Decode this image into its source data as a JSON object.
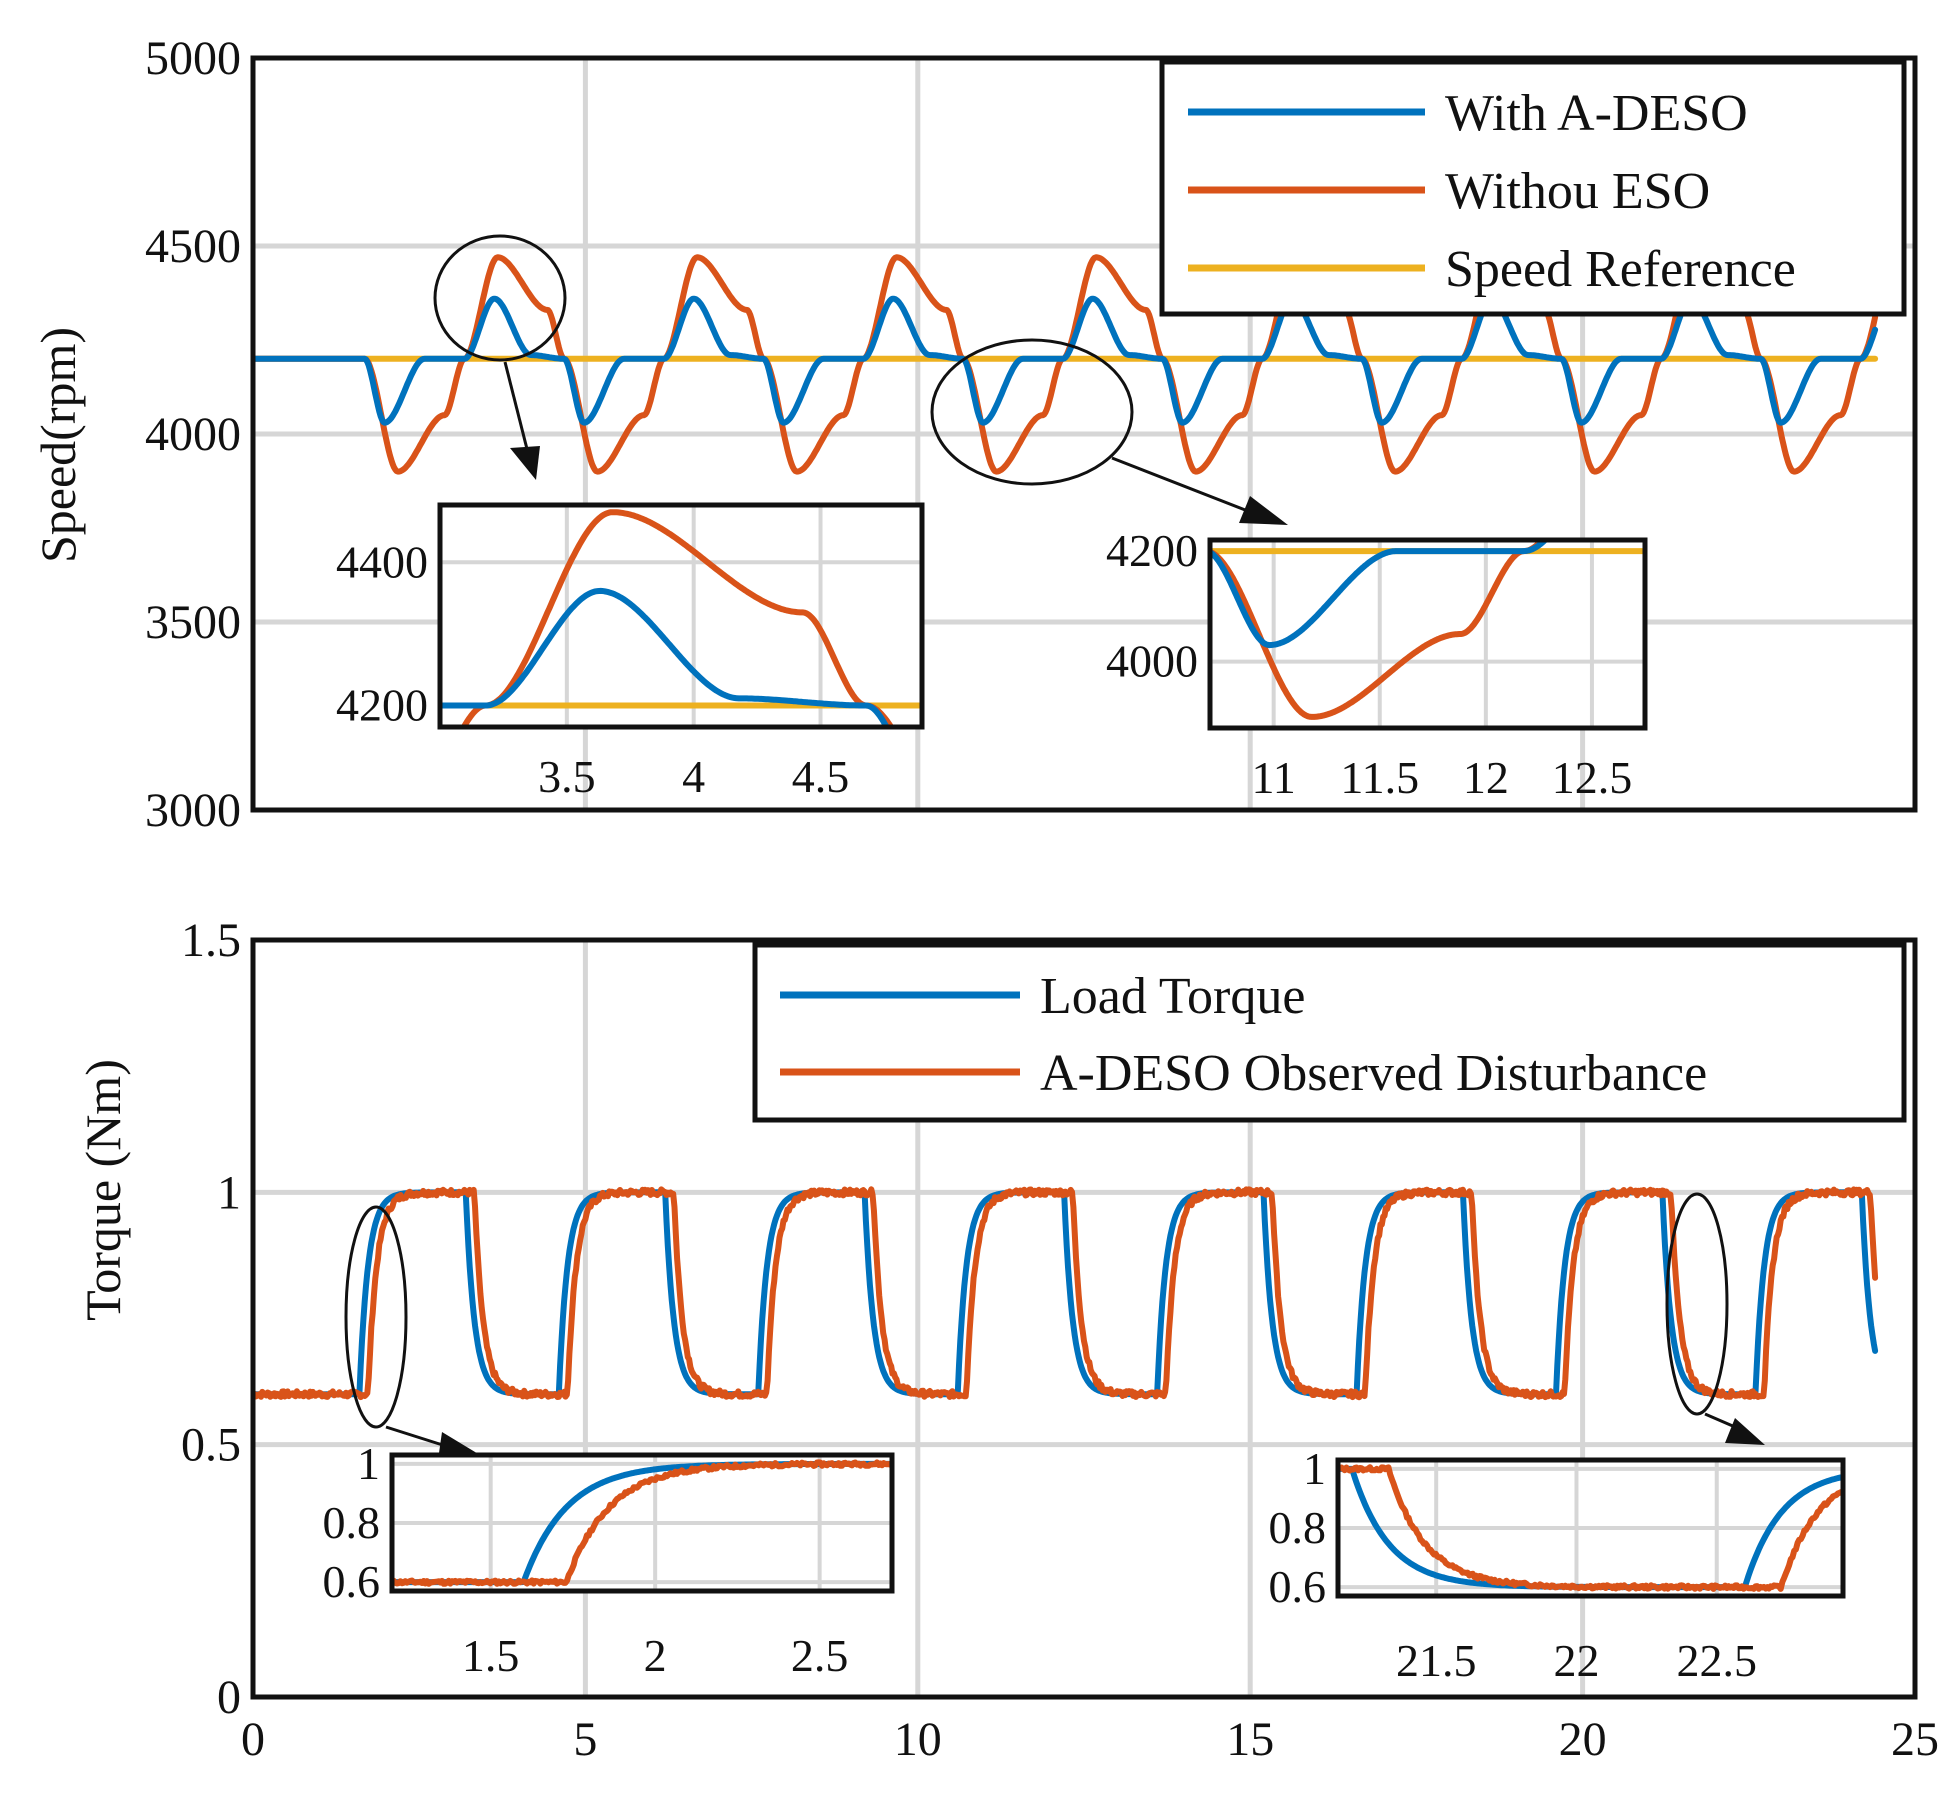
{
  "chart_data": [
    {
      "id": "speed",
      "type": "line",
      "title": "",
      "xlabel": "",
      "ylabel": "Speed(rpm)",
      "xlim": [
        0,
        25
      ],
      "ylim": [
        3000,
        5000
      ],
      "yticks": [
        3000,
        3500,
        4000,
        4500,
        5000
      ],
      "yticklabels": [
        "3000",
        "3500",
        "4000",
        "4500",
        "5000"
      ],
      "grid": true,
      "legend_position": "top-right",
      "disturbance_period_s": 3.0,
      "first_step_s": 1.68,
      "series": [
        {
          "name": "With A-DESO",
          "color": "#0072BD",
          "baseline": 4200,
          "dip_min": 4030,
          "overshoot_peak": 4360,
          "end_s": 24.4
        },
        {
          "name": "Withou ESO",
          "color": "#D95319",
          "baseline": 4200,
          "dip_min": 3900,
          "overshoot_peak": 4470,
          "end_s": 24.4
        },
        {
          "name": "Speed Reference",
          "color": "#EDB120",
          "values": [
            [
              0,
              4200
            ],
            [
              24.4,
              4200
            ]
          ]
        }
      ],
      "insets": [
        {
          "xlim": [
            3.0,
            4.9
          ],
          "ylim": [
            4170,
            4480
          ],
          "xticks": [
            3.5,
            4,
            4.5
          ],
          "xticklabels": [
            "3.5",
            "4",
            "4.5"
          ],
          "yticks": [
            4200,
            4400
          ],
          "yticklabels": [
            "4200",
            "4400"
          ]
        },
        {
          "xlim": [
            10.7,
            12.75
          ],
          "ylim": [
            3880,
            4220
          ],
          "xticks": [
            11,
            11.5,
            12,
            12.5
          ],
          "xticklabels": [
            "11",
            "11.5",
            "12",
            "12.5"
          ],
          "yticks": [
            4000,
            4200
          ],
          "yticklabels": [
            "4000",
            "4200"
          ]
        }
      ]
    },
    {
      "id": "torque",
      "type": "line",
      "title": "",
      "xlabel": "",
      "ylabel": "Torque (Nm)",
      "xlim": [
        0,
        25
      ],
      "ylim": [
        0,
        1.5
      ],
      "xticks": [
        0,
        5,
        10,
        15,
        20,
        25
      ],
      "xticklabels": [
        "0",
        "5",
        "10",
        "15",
        "20",
        "25"
      ],
      "yticks": [
        0,
        0.5,
        1,
        1.5
      ],
      "yticklabels": [
        "0",
        "0.5",
        "1",
        "1.5"
      ],
      "grid": true,
      "legend_position": "top-right",
      "series": [
        {
          "name": "Load Torque",
          "color": "#0072BD",
          "low": 0.6,
          "high": 1.0,
          "period_s": 3.0,
          "rise_start_s": 1.6,
          "fall_start_s": 3.2,
          "end_s": 24.4
        },
        {
          "name": "A-DESO Observed Disturbance",
          "color": "#D95319",
          "low": 0.6,
          "high": 1.0,
          "lag_s": 0.13,
          "end_s": 24.4
        }
      ],
      "insets": [
        {
          "xlim": [
            1.2,
            2.72
          ],
          "ylim": [
            0.57,
            1.03
          ],
          "xticks": [
            1.5,
            2,
            2.5
          ],
          "xticklabels": [
            "1.5",
            "2",
            "2.5"
          ],
          "yticks": [
            0.6,
            0.8,
            1
          ],
          "yticklabels": [
            "0.6",
            "0.8",
            "1"
          ]
        },
        {
          "xlim": [
            21.15,
            22.95
          ],
          "ylim": [
            0.57,
            1.03
          ],
          "xticks": [
            21.5,
            22,
            22.5
          ],
          "xticklabels": [
            "21.5",
            "22",
            "22.5"
          ],
          "yticks": [
            0.6,
            0.8,
            1
          ],
          "yticklabels": [
            "0.6",
            "0.8",
            "1"
          ]
        }
      ]
    }
  ]
}
